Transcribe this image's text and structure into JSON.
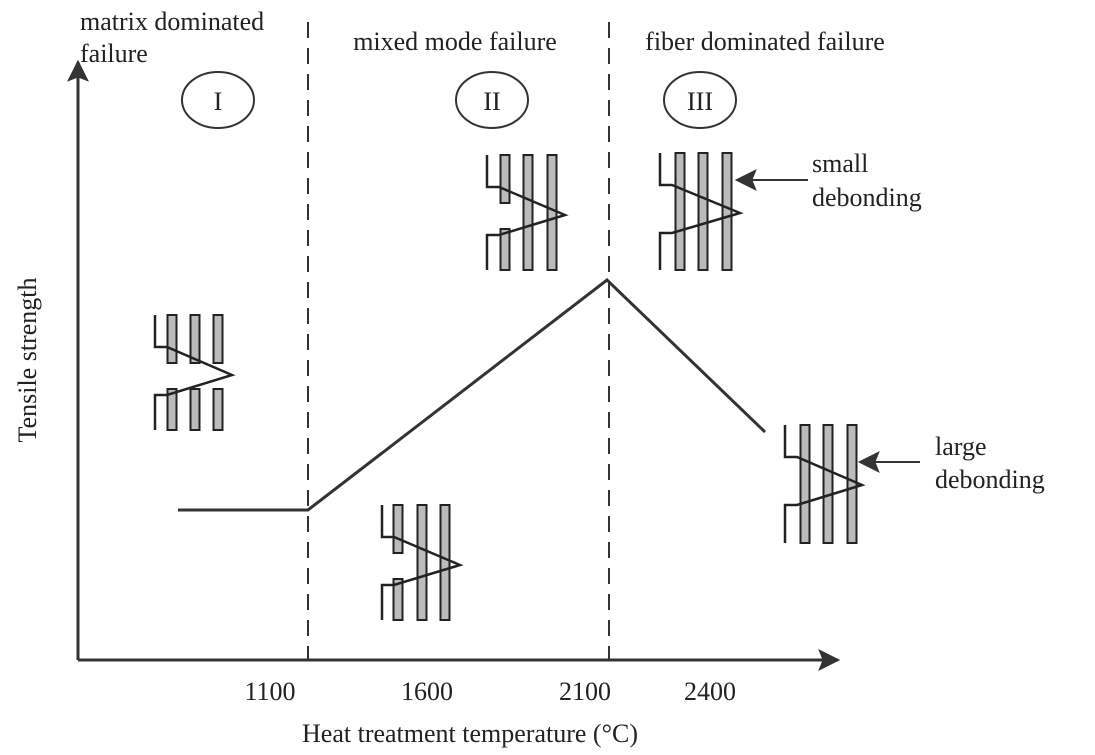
{
  "regions": [
    {
      "label_lines": [
        "matrix dominated",
        "failure"
      ],
      "numeral": "I"
    },
    {
      "label_lines": [
        "mixed mode failure"
      ],
      "numeral": "II"
    },
    {
      "label_lines": [
        "fiber dominated failure"
      ],
      "numeral": "III"
    }
  ],
  "y_axis_title": "Tensile strength",
  "x_axis_title": "Heat treatment temperature (°C)",
  "x_ticks": [
    1100,
    1600,
    2100,
    2400
  ],
  "annotations": [
    {
      "lines": [
        "small",
        "debonding"
      ]
    },
    {
      "lines": [
        "large",
        "debonding"
      ]
    }
  ]
}
